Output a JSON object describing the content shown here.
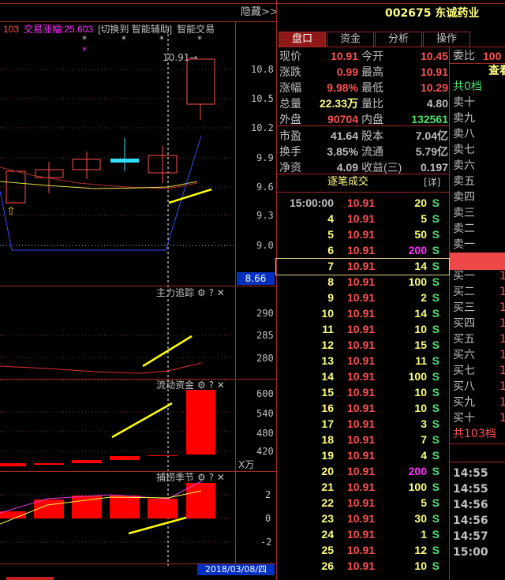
{
  "top_bar": {
    "hide_label": "隐藏>>"
  },
  "chart": {
    "indicator_left": "103",
    "trade_rise": "交易涨幅:25.603",
    "switch_label": "[切换到 智能辅助]",
    "smart_trade": "智能交易",
    "price_marker": "10.91→",
    "price_axis": [
      "10.8",
      "10.5",
      "10.2",
      "9.9",
      "9.6",
      "9.3",
      "9.0"
    ],
    "cursor_price": "8.66",
    "panels": [
      {
        "title": "主力追踪",
        "axis": [
          "290",
          "285",
          "280"
        ]
      },
      {
        "title": "流动资金",
        "axis": [
          "600",
          "540",
          "480",
          "420"
        ],
        "unit": "X万"
      },
      {
        "title": "捕捞季节",
        "axis": [
          "2",
          "0",
          "-2"
        ]
      }
    ],
    "date": "2018/03/08/四"
  },
  "stock": {
    "code": "002675",
    "name": "东诚药业"
  },
  "tabs": [
    "盘口",
    "资金",
    "分析",
    "操作"
  ],
  "quote": [
    [
      "现价",
      "10.91",
      "今开",
      "10.45"
    ],
    [
      "涨跌",
      "0.99",
      "最高",
      "10.91"
    ],
    [
      "涨幅",
      "9.98%",
      "最低",
      "10.29"
    ],
    [
      "总量",
      "22.33万",
      "量比",
      "4.80"
    ],
    [
      "外盘",
      "90704",
      "内盘",
      "132561"
    ],
    [
      "市盈",
      "41.64",
      "股本",
      "7.04亿"
    ],
    [
      "换手",
      "3.85%",
      "流通",
      "5.79亿"
    ],
    [
      "净资",
      "4.09",
      "收益(三)",
      "0.197"
    ]
  ],
  "ticks": {
    "header": "逐笔成交",
    "detail": "[详]",
    "rows": [
      [
        "15:00:00",
        "10.91",
        "20",
        "S"
      ],
      [
        "4",
        "10.91",
        "5",
        "S"
      ],
      [
        "5",
        "10.91",
        "50",
        "S"
      ],
      [
        "6",
        "10.91",
        "200",
        "S"
      ],
      [
        "7",
        "10.91",
        "14",
        "S"
      ],
      [
        "8",
        "10.91",
        "100",
        "S"
      ],
      [
        "9",
        "10.91",
        "2",
        "S"
      ],
      [
        "10",
        "10.91",
        "14",
        "S"
      ],
      [
        "11",
        "10.91",
        "10",
        "S"
      ],
      [
        "12",
        "10.91",
        "15",
        "S"
      ],
      [
        "13",
        "10.91",
        "11",
        "S"
      ],
      [
        "14",
        "10.91",
        "100",
        "S"
      ],
      [
        "15",
        "10.91",
        "10",
        "S"
      ],
      [
        "16",
        "10.91",
        "10",
        "S"
      ],
      [
        "17",
        "10.91",
        "3",
        "S"
      ],
      [
        "18",
        "10.91",
        "7",
        "S"
      ],
      [
        "19",
        "10.91",
        "4",
        "S"
      ],
      [
        "20",
        "10.91",
        "200",
        "S"
      ],
      [
        "21",
        "10.91",
        "100",
        "S"
      ],
      [
        "22",
        "10.91",
        "5",
        "S"
      ],
      [
        "23",
        "10.91",
        "30",
        "S"
      ],
      [
        "24",
        "10.91",
        "1",
        "S"
      ],
      [
        "25",
        "10.91",
        "12",
        "S"
      ],
      [
        "26",
        "10.91",
        "10",
        "S"
      ]
    ]
  },
  "orderbook": {
    "weibi_label": "委比",
    "weibi_value": "100",
    "view": "查看",
    "sell_total": "共0档",
    "sells": [
      "卖十",
      "卖九",
      "卖八",
      "卖七",
      "卖六",
      "卖五",
      "卖四",
      "卖三",
      "卖二",
      "卖一"
    ],
    "buys": [
      "买一",
      "买二",
      "买三",
      "买四",
      "买五",
      "买六",
      "买七",
      "买八",
      "买九",
      "买十"
    ],
    "buy_total": "共103档",
    "times": [
      "14:55",
      "14:55",
      "14:56",
      "14:56",
      "14:57",
      "15:00"
    ]
  }
}
